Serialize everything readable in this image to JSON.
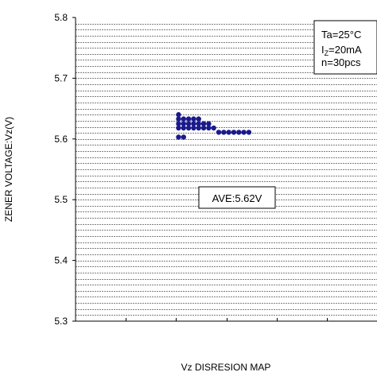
{
  "chart_data": {
    "type": "scatter",
    "title": "",
    "xlabel": "Vz DISRESION MAP",
    "ylabel": "ZENER VOLTAGE:Vz(V)",
    "ylim": [
      5.3,
      5.8
    ],
    "yticks": [
      "5.3",
      "5.4",
      "5.5",
      "5.6",
      "5.7",
      "5.8"
    ],
    "xlim": [
      0,
      6
    ],
    "grid": "horizontal dashed lines every 0.01 V",
    "annotations": {
      "conditions": {
        "line1": "Ta=25°C",
        "line2_main": "I",
        "line2_sub": "Z",
        "line2_rest": "=20mA",
        "line3": "n=30pcs"
      },
      "average": "AVE:5.62V"
    },
    "marker_color": "#1a1a8c",
    "series": [
      {
        "points": [
          {
            "x": 2.05,
            "y": 5.64
          },
          {
            "x": 2.05,
            "y": 5.633
          },
          {
            "x": 2.15,
            "y": 5.633
          },
          {
            "x": 2.25,
            "y": 5.633
          },
          {
            "x": 2.35,
            "y": 5.633
          },
          {
            "x": 2.45,
            "y": 5.633
          },
          {
            "x": 2.05,
            "y": 5.625
          },
          {
            "x": 2.15,
            "y": 5.625
          },
          {
            "x": 2.25,
            "y": 5.625
          },
          {
            "x": 2.35,
            "y": 5.625
          },
          {
            "x": 2.45,
            "y": 5.625
          },
          {
            "x": 2.55,
            "y": 5.625
          },
          {
            "x": 2.65,
            "y": 5.625
          },
          {
            "x": 2.05,
            "y": 5.618
          },
          {
            "x": 2.15,
            "y": 5.618
          },
          {
            "x": 2.25,
            "y": 5.618
          },
          {
            "x": 2.35,
            "y": 5.618
          },
          {
            "x": 2.45,
            "y": 5.618
          },
          {
            "x": 2.55,
            "y": 5.618
          },
          {
            "x": 2.65,
            "y": 5.618
          },
          {
            "x": 2.75,
            "y": 5.618
          },
          {
            "x": 2.85,
            "y": 5.611
          },
          {
            "x": 2.95,
            "y": 5.611
          },
          {
            "x": 3.05,
            "y": 5.611
          },
          {
            "x": 3.15,
            "y": 5.611
          },
          {
            "x": 3.25,
            "y": 5.611
          },
          {
            "x": 3.35,
            "y": 5.611
          },
          {
            "x": 3.45,
            "y": 5.611
          },
          {
            "x": 2.05,
            "y": 5.603
          },
          {
            "x": 2.15,
            "y": 5.603
          }
        ]
      }
    ]
  }
}
